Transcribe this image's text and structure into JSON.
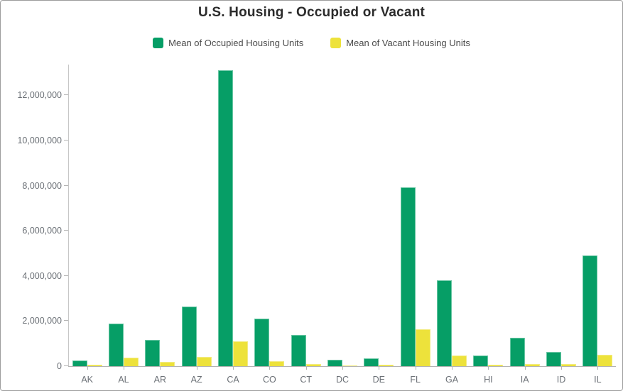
{
  "header": {
    "title": "U.S. Housing - Occupied or Vacant"
  },
  "legend": {
    "items": [
      {
        "label": "Mean of Occupied Housing Units",
        "color": "#069e66"
      },
      {
        "label": "Mean of Vacant Housing Units",
        "color": "#ede23b"
      }
    ]
  },
  "colors": {
    "occupied_fill": "#069e66",
    "occupied_border": "#6ac6a4",
    "vacant_fill": "#ede23b",
    "vacant_border": "#f2eb81",
    "axis_line": "#b3b3b3",
    "axis_text": "#6b7076",
    "title_text": "#2b2b2b"
  },
  "chart_data": {
    "type": "bar",
    "title": "U.S. Housing - Occupied or Vacant",
    "xlabel": "",
    "ylabel": "",
    "grid": false,
    "legend_position": "top",
    "categories": [
      "AK",
      "AL",
      "AR",
      "AZ",
      "CA",
      "CO",
      "CT",
      "DC",
      "DE",
      "FL",
      "GA",
      "HI",
      "IA",
      "ID",
      "IL"
    ],
    "series": [
      {
        "name": "Mean of Occupied Housing Units",
        "color": "#069e66",
        "border": "#6ac6a4",
        "values": [
          240000,
          1880000,
          1170000,
          2650000,
          13120000,
          2110000,
          1390000,
          290000,
          360000,
          7920000,
          3810000,
          460000,
          1270000,
          630000,
          4890000
        ]
      },
      {
        "name": "Mean of Vacant Housing Units",
        "color": "#ede23b",
        "border": "#f2eb81",
        "values": [
          55000,
          375000,
          195000,
          395000,
          1090000,
          215000,
          110000,
          30000,
          60000,
          1630000,
          470000,
          70000,
          100000,
          80000,
          490000
        ]
      }
    ],
    "ylim": [
      0,
      13360000
    ],
    "yticks": [
      0,
      2000000,
      4000000,
      6000000,
      8000000,
      10000000,
      12000000
    ],
    "ytick_labels": [
      "0",
      "2,000,000",
      "4,000,000",
      "6,000,000",
      "8,000,000",
      "10,000,000",
      "12,000,000"
    ]
  }
}
